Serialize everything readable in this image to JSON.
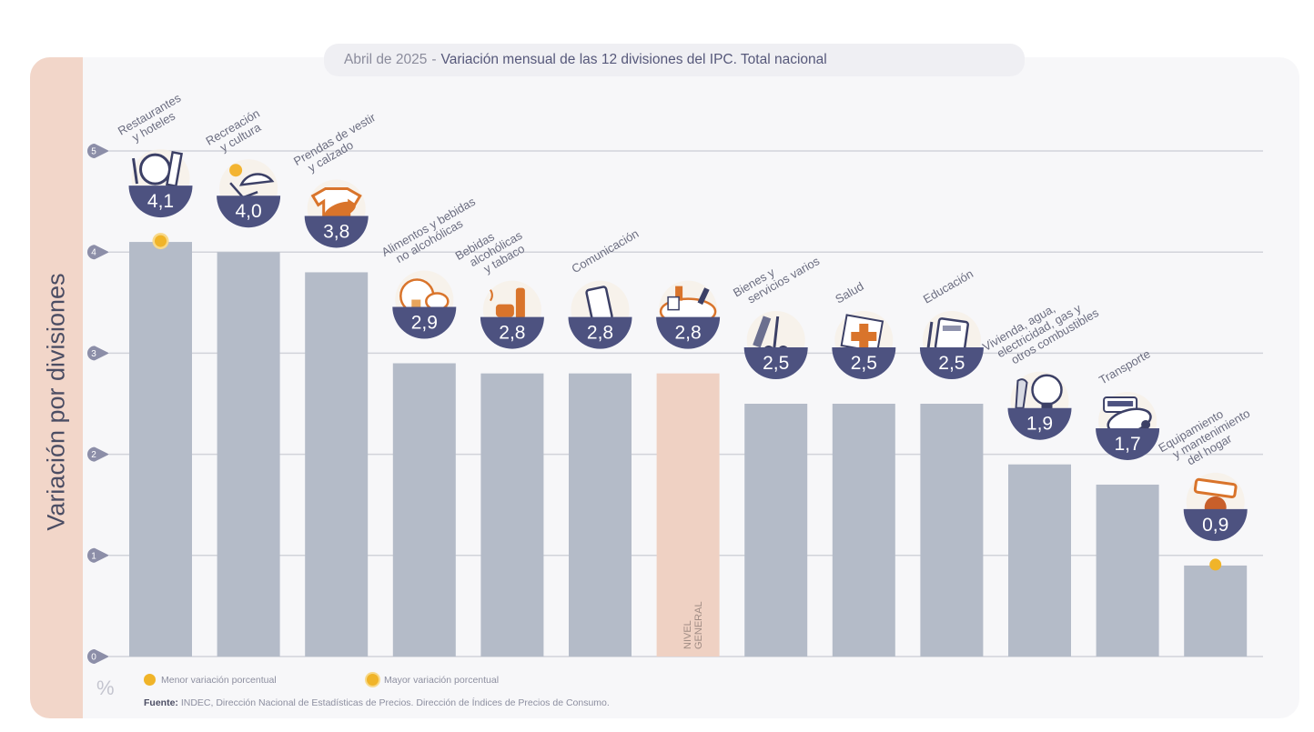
{
  "colors": {
    "bar": "#b4bbc8",
    "bar_general": "#efd1c3",
    "badge": "#4d5280",
    "badge_text": "#ffffff",
    "accent_orange": "#d9742b",
    "marker": "#f0b429",
    "grid": "#d2d3da",
    "tick_pin": "#8c8ea8",
    "side_panel": "#f2d6c9"
  },
  "header": {
    "date": "Abril de 2025",
    "separator": "-",
    "title": "Variación mensual de las 12 divisiones del IPC. Total nacional"
  },
  "side_label": "Variación por divisiones",
  "unit_label": "%",
  "legend": {
    "min_label": "Menor variación porcentual",
    "max_label": "Mayor variación porcentual"
  },
  "source": {
    "prefix": "Fuente:",
    "text": "INDEC, Dirección Nacional de Estadísticas de Precios. Dirección de Índices de Precios de Consumo."
  },
  "chart_data": {
    "type": "bar",
    "title": "Abril de 2025 - Variación mensual de las 12 divisiones del IPC. Total nacional",
    "xlabel": "",
    "ylabel": "Variación por divisiones (%)",
    "ylim": [
      0,
      5
    ],
    "yticks": [
      "0",
      "1",
      "2",
      "3",
      "4",
      "5"
    ],
    "grid": true,
    "legend_position": "bottom-left",
    "categories": [
      {
        "lines": [
          "Restaurantes",
          "y hoteles"
        ],
        "value": 4.1,
        "label": "4,1",
        "icon": "restaurant-icon",
        "marker": "max"
      },
      {
        "lines": [
          "Recreación",
          "y cultura"
        ],
        "value": 4.0,
        "label": "4,0",
        "icon": "beach-umbrella-icon"
      },
      {
        "lines": [
          "Prendas de vestir",
          "y calzado"
        ],
        "value": 3.8,
        "label": "3,8",
        "icon": "tshirt-shoe-icon"
      },
      {
        "lines": [
          "Alimentos y bebidas",
          "no alcohólicas"
        ],
        "value": 2.9,
        "label": "2,9",
        "icon": "food-icon"
      },
      {
        "lines": [
          "Bebidas",
          "alcohólicas",
          "y tabaco"
        ],
        "value": 2.8,
        "label": "2,8",
        "icon": "bottle-icon"
      },
      {
        "lines": [
          "Comunicación"
        ],
        "value": 2.8,
        "label": "2,8",
        "icon": "smartphone-icon"
      },
      {
        "lines": [],
        "value": 2.8,
        "label": "2,8",
        "icon": "shopping-basket-icon",
        "general": true,
        "bar_text": [
          "NIVEL",
          "GENERAL"
        ]
      },
      {
        "lines": [
          "Bienes y",
          "servicios varios"
        ],
        "value": 2.5,
        "label": "2,5",
        "icon": "comb-scissors-icon"
      },
      {
        "lines": [
          "Salud"
        ],
        "value": 2.5,
        "label": "2,5",
        "icon": "medical-cross-icon"
      },
      {
        "lines": [
          "Educación"
        ],
        "value": 2.5,
        "label": "2,5",
        "icon": "notebook-icon"
      },
      {
        "lines": [
          "Vivienda, agua,",
          "electricidad, gas y",
          "otros combustibles"
        ],
        "value": 1.9,
        "label": "1,9",
        "icon": "lightbulb-icon"
      },
      {
        "lines": [
          "Transporte"
        ],
        "value": 1.7,
        "label": "1,7",
        "icon": "car-icon"
      },
      {
        "lines": [
          "Equipamiento",
          "y mantenimiento",
          "del hogar"
        ],
        "value": 0.9,
        "label": "0,9",
        "icon": "household-icon",
        "marker": "min"
      }
    ]
  }
}
